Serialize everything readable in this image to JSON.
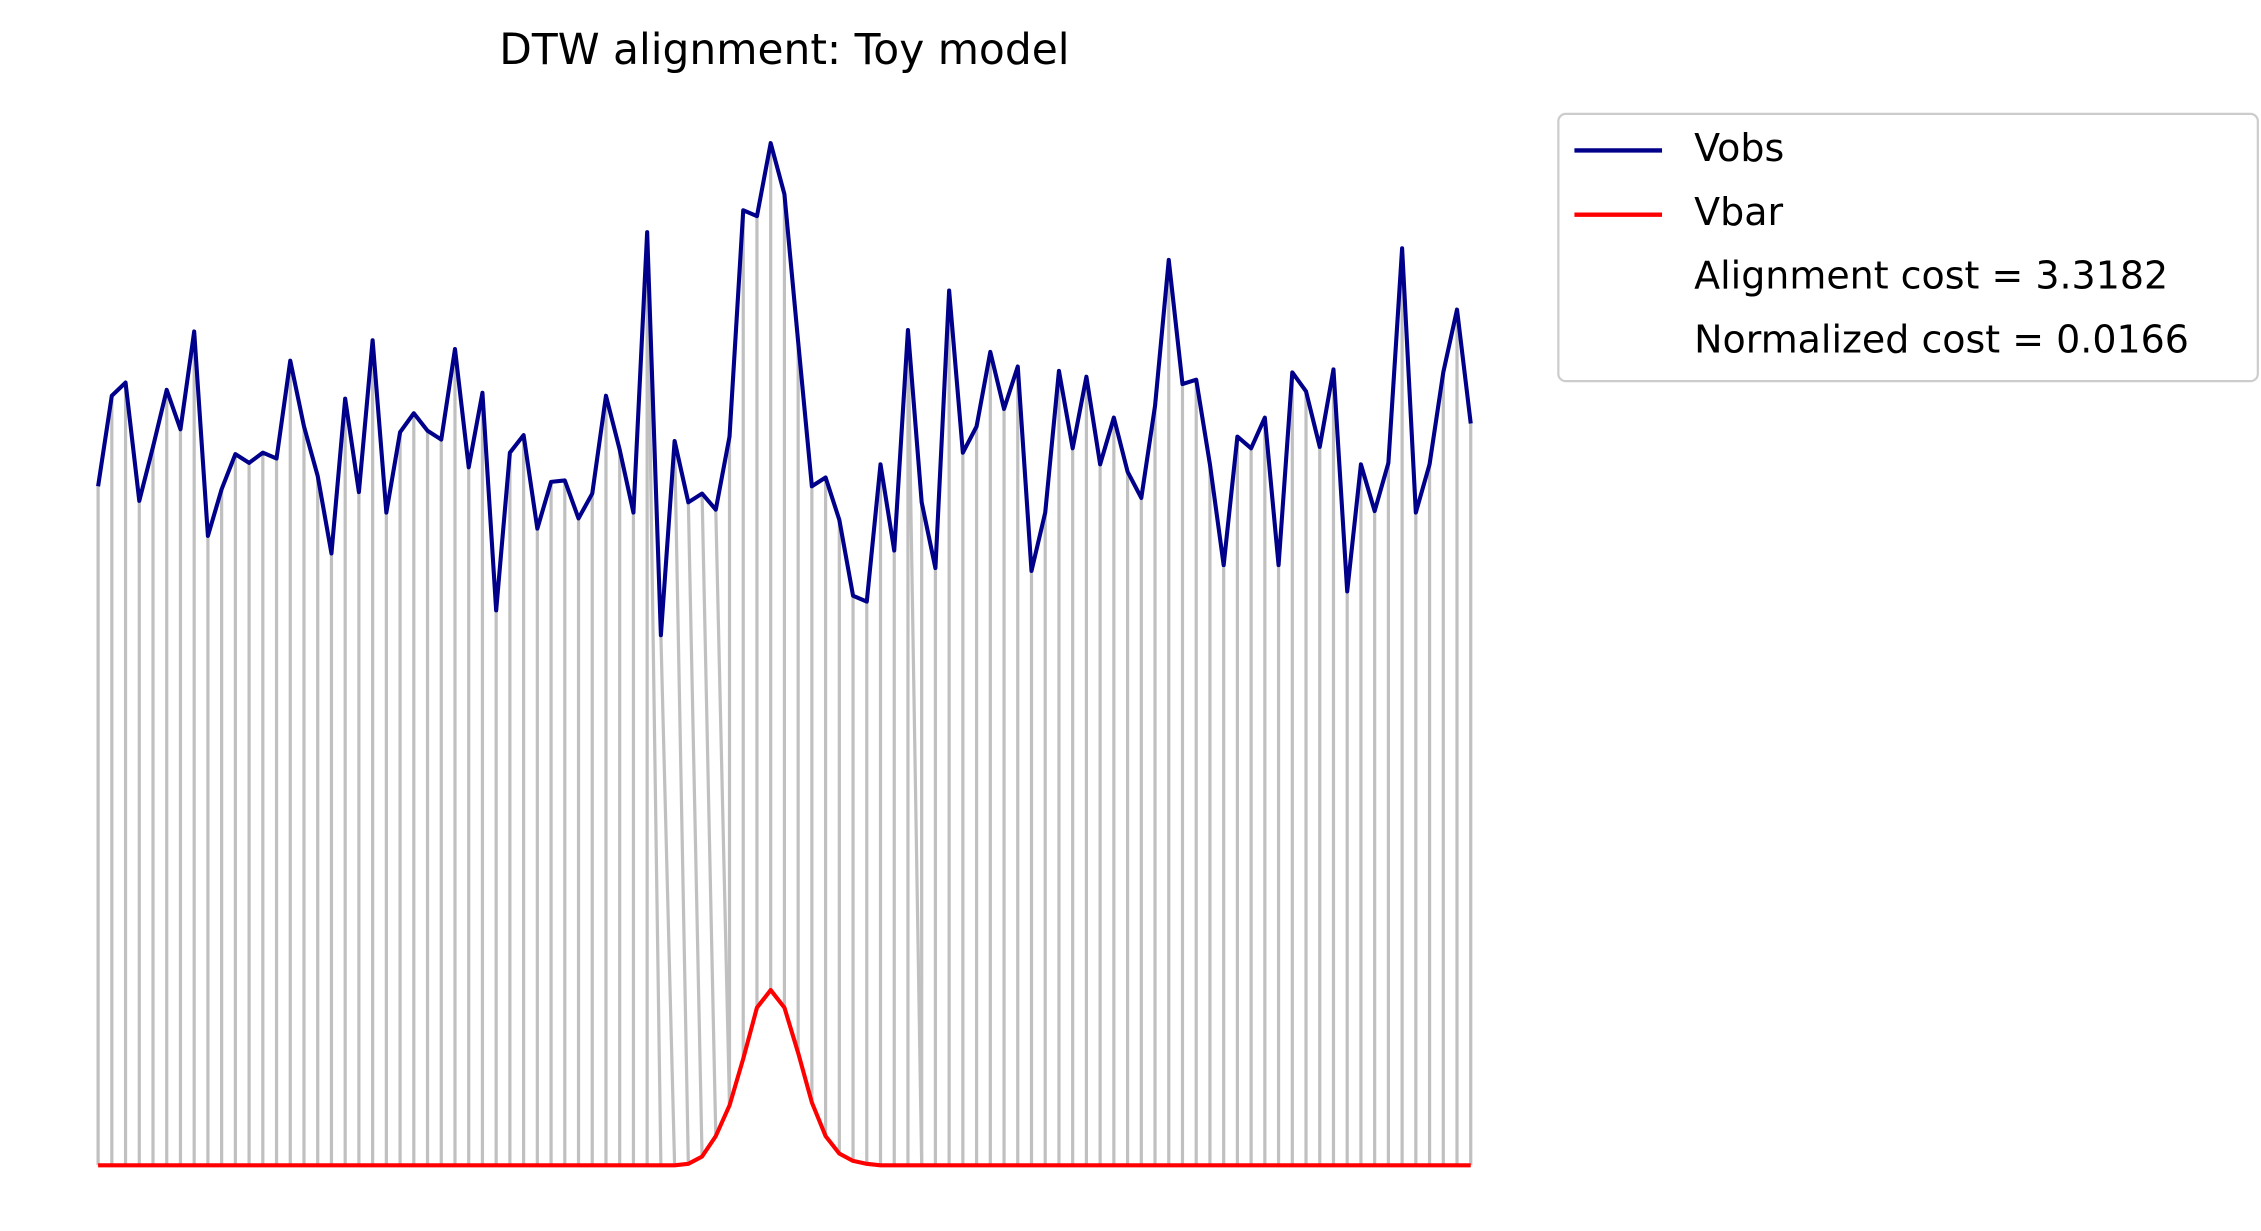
{
  "chart_data": {
    "type": "line",
    "title": "DTW alignment: Toy model",
    "xlim": [
      0,
      100
    ],
    "ylim": [
      0,
      700
    ],
    "series": [
      {
        "name": "Vobs",
        "color": "#00008b",
        "values": [
          465,
          527,
          536,
          455,
          492,
          531,
          504,
          571,
          431,
          463,
          487,
          481,
          488,
          484,
          551,
          506,
          472,
          419,
          525,
          461,
          565,
          447,
          502,
          515,
          503,
          497,
          559,
          478,
          529,
          380,
          488,
          500,
          436,
          468,
          469,
          443,
          460,
          527,
          490,
          447,
          639,
          363,
          496,
          454,
          460,
          449,
          499,
          654,
          650,
          700,
          665,
          564,
          465,
          471,
          442,
          390,
          386,
          480,
          421,
          572,
          454,
          409,
          599,
          488,
          506,
          557,
          518,
          547,
          407,
          447,
          544,
          491,
          540,
          480,
          512,
          475,
          457,
          520,
          620,
          535,
          538,
          480,
          411,
          499,
          491,
          512,
          411,
          543,
          530,
          492,
          545,
          393,
          480,
          448,
          481,
          628,
          447,
          480,
          543,
          586,
          508
        ]
      },
      {
        "name": "Vbar",
        "color": "#ff0000",
        "values": [
          0,
          0,
          0,
          0,
          0,
          0,
          0,
          0,
          0,
          0,
          0,
          0,
          0,
          0,
          0,
          0,
          0,
          0,
          0,
          0,
          0,
          0,
          0,
          0,
          0,
          0,
          0,
          0,
          0,
          0,
          0,
          0,
          0,
          0,
          0,
          0,
          0,
          0,
          0,
          0,
          0,
          0,
          0,
          1,
          6,
          20,
          41,
          73,
          108,
          120,
          108,
          77,
          43,
          20,
          8,
          3,
          1,
          0,
          0,
          0,
          0,
          0,
          0,
          0,
          0,
          0,
          0,
          0,
          0,
          0,
          0,
          0,
          0,
          0,
          0,
          0,
          0,
          0,
          0,
          0,
          0,
          0,
          0,
          0,
          0,
          0,
          0,
          0,
          0,
          0,
          0,
          0,
          0,
          0,
          0,
          0,
          0,
          0,
          0,
          0,
          0
        ]
      }
    ],
    "alignment_color": "#c0c0c0",
    "alignment": [
      [
        0,
        0
      ],
      [
        1,
        1
      ],
      [
        2,
        2
      ],
      [
        3,
        3
      ],
      [
        4,
        4
      ],
      [
        5,
        5
      ],
      [
        6,
        6
      ],
      [
        7,
        7
      ],
      [
        8,
        8
      ],
      [
        9,
        9
      ],
      [
        10,
        10
      ],
      [
        11,
        11
      ],
      [
        12,
        12
      ],
      [
        13,
        13
      ],
      [
        14,
        14
      ],
      [
        15,
        15
      ],
      [
        16,
        16
      ],
      [
        17,
        17
      ],
      [
        18,
        18
      ],
      [
        19,
        19
      ],
      [
        20,
        20
      ],
      [
        21,
        21
      ],
      [
        22,
        22
      ],
      [
        23,
        23
      ],
      [
        24,
        24
      ],
      [
        25,
        25
      ],
      [
        26,
        26
      ],
      [
        27,
        27
      ],
      [
        28,
        28
      ],
      [
        29,
        29
      ],
      [
        30,
        30
      ],
      [
        31,
        31
      ],
      [
        32,
        32
      ],
      [
        33,
        33
      ],
      [
        34,
        34
      ],
      [
        35,
        35
      ],
      [
        36,
        36
      ],
      [
        37,
        37
      ],
      [
        38,
        38
      ],
      [
        39,
        39
      ],
      [
        40,
        40
      ],
      [
        40,
        41
      ],
      [
        41,
        42
      ],
      [
        42,
        43
      ],
      [
        43,
        44
      ],
      [
        44,
        45
      ],
      [
        45,
        46
      ],
      [
        46,
        46
      ],
      [
        47,
        47
      ],
      [
        48,
        48
      ],
      [
        49,
        49
      ],
      [
        50,
        50
      ],
      [
        51,
        51
      ],
      [
        52,
        52
      ],
      [
        53,
        53
      ],
      [
        54,
        54
      ],
      [
        55,
        55
      ],
      [
        56,
        56
      ],
      [
        57,
        57
      ],
      [
        58,
        58
      ],
      [
        59,
        59
      ],
      [
        59,
        60
      ],
      [
        60,
        60
      ],
      [
        61,
        61
      ],
      [
        62,
        62
      ],
      [
        63,
        63
      ],
      [
        64,
        64
      ],
      [
        65,
        65
      ],
      [
        66,
        66
      ],
      [
        67,
        67
      ],
      [
        68,
        68
      ],
      [
        69,
        69
      ],
      [
        70,
        70
      ],
      [
        71,
        71
      ],
      [
        72,
        72
      ],
      [
        73,
        73
      ],
      [
        74,
        74
      ],
      [
        75,
        75
      ],
      [
        76,
        76
      ],
      [
        77,
        77
      ],
      [
        78,
        78
      ],
      [
        79,
        79
      ],
      [
        80,
        80
      ],
      [
        81,
        81
      ],
      [
        82,
        82
      ],
      [
        83,
        83
      ],
      [
        84,
        84
      ],
      [
        85,
        85
      ],
      [
        86,
        86
      ],
      [
        87,
        87
      ],
      [
        88,
        88
      ],
      [
        89,
        89
      ],
      [
        90,
        90
      ],
      [
        91,
        91
      ],
      [
        92,
        92
      ],
      [
        93,
        93
      ],
      [
        94,
        94
      ],
      [
        95,
        95
      ],
      [
        96,
        96
      ],
      [
        97,
        97
      ],
      [
        98,
        98
      ],
      [
        99,
        99
      ],
      [
        100,
        100
      ]
    ],
    "annotations": [
      "Alignment cost = 3.3182",
      "Normalized cost = 0.0166"
    ],
    "legend": "outside upper right"
  }
}
